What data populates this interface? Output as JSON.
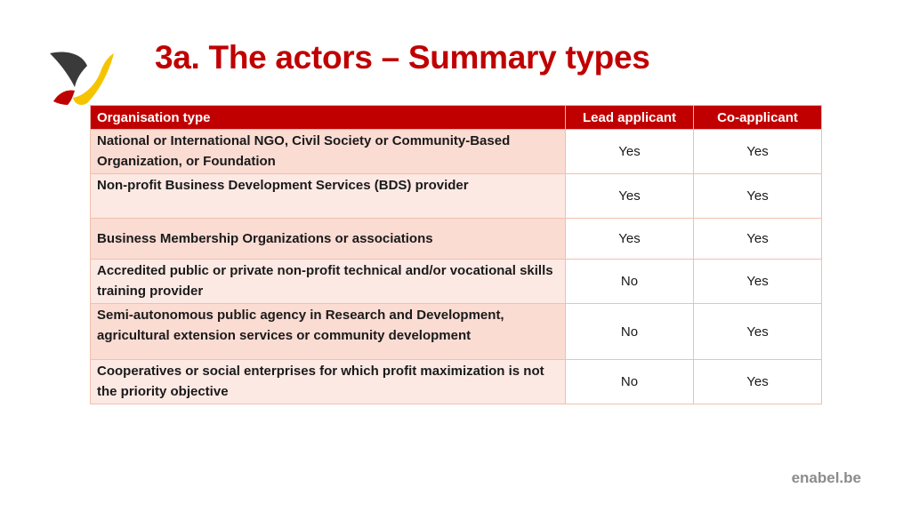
{
  "slide": {
    "title": "3a. The actors – Summary types"
  },
  "table": {
    "headers": {
      "organisation_type": "Organisation type",
      "lead_applicant": "Lead applicant",
      "co_applicant": "Co-applicant"
    },
    "rows": [
      {
        "organisation_type": "National or International NGO, Civil Society or Community-Based Organization, or Foundation",
        "lead_applicant": "Yes",
        "co_applicant": "Yes"
      },
      {
        "organisation_type": "Non-profit Business Development Services (BDS) provider",
        "lead_applicant": "Yes",
        "co_applicant": "Yes"
      },
      {
        "organisation_type": "Business Membership Organizations or associations",
        "lead_applicant": "Yes",
        "co_applicant": "Yes"
      },
      {
        "organisation_type": "Accredited public or private non-profit technical and/or vocational skills training provider",
        "lead_applicant": "No",
        "co_applicant": "Yes"
      },
      {
        "organisation_type": "Semi-autonomous public agency in Research and Development, agricultural extension services or community development",
        "lead_applicant": "No",
        "co_applicant": "Yes"
      },
      {
        "organisation_type": "Cooperatives or social enterprises for which profit maximization is not the priority objective",
        "lead_applicant": "No",
        "co_applicant": "Yes"
      }
    ],
    "colors": {
      "header_bg": "#c00000",
      "row_bg": "#fbdcd3",
      "row_alt_bg": "#fde9e4",
      "border": "#efc0ad"
    }
  },
  "footer": {
    "website": "enabel.be"
  },
  "logo": {
    "icon": "enabel-bird-logo-icon",
    "colors": [
      "#3a3a3a",
      "#f5c400",
      "#c00000"
    ]
  }
}
